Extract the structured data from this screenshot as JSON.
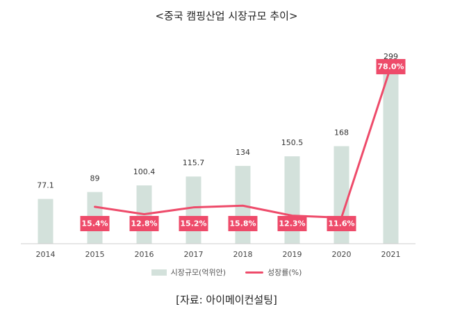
{
  "chart_data": {
    "type": "bar",
    "title": "<중국 캠핑산업 시장규모 추이>",
    "categories": [
      "2014",
      "2015",
      "2016",
      "2017",
      "2018",
      "2019",
      "2020",
      "2021"
    ],
    "series": [
      {
        "name": "시장규모(억위안)",
        "type": "bar",
        "values": [
          77.1,
          89,
          100.4,
          115.7,
          134,
          150.5,
          168,
          299
        ],
        "labels": [
          "77.1",
          "89",
          "100.4",
          "115.7",
          "134",
          "150.5",
          "168",
          "299"
        ]
      },
      {
        "name": "성장률(%)",
        "type": "line",
        "values": [
          null,
          15.4,
          12.8,
          15.2,
          15.8,
          12.3,
          11.6,
          78.0
        ],
        "labels": [
          null,
          "15.4%",
          "12.8%",
          "15.2%",
          "15.8%",
          "12.3%",
          "11.6%",
          "78.0%"
        ]
      }
    ],
    "ylim": [
      0,
      330
    ],
    "legend_position": "bottom",
    "colors": {
      "bar": "#d3e1db",
      "line": "#ee4b6a",
      "axis": "#cccccc"
    }
  },
  "source_note": "[자료: 아이메이컨설팅]"
}
